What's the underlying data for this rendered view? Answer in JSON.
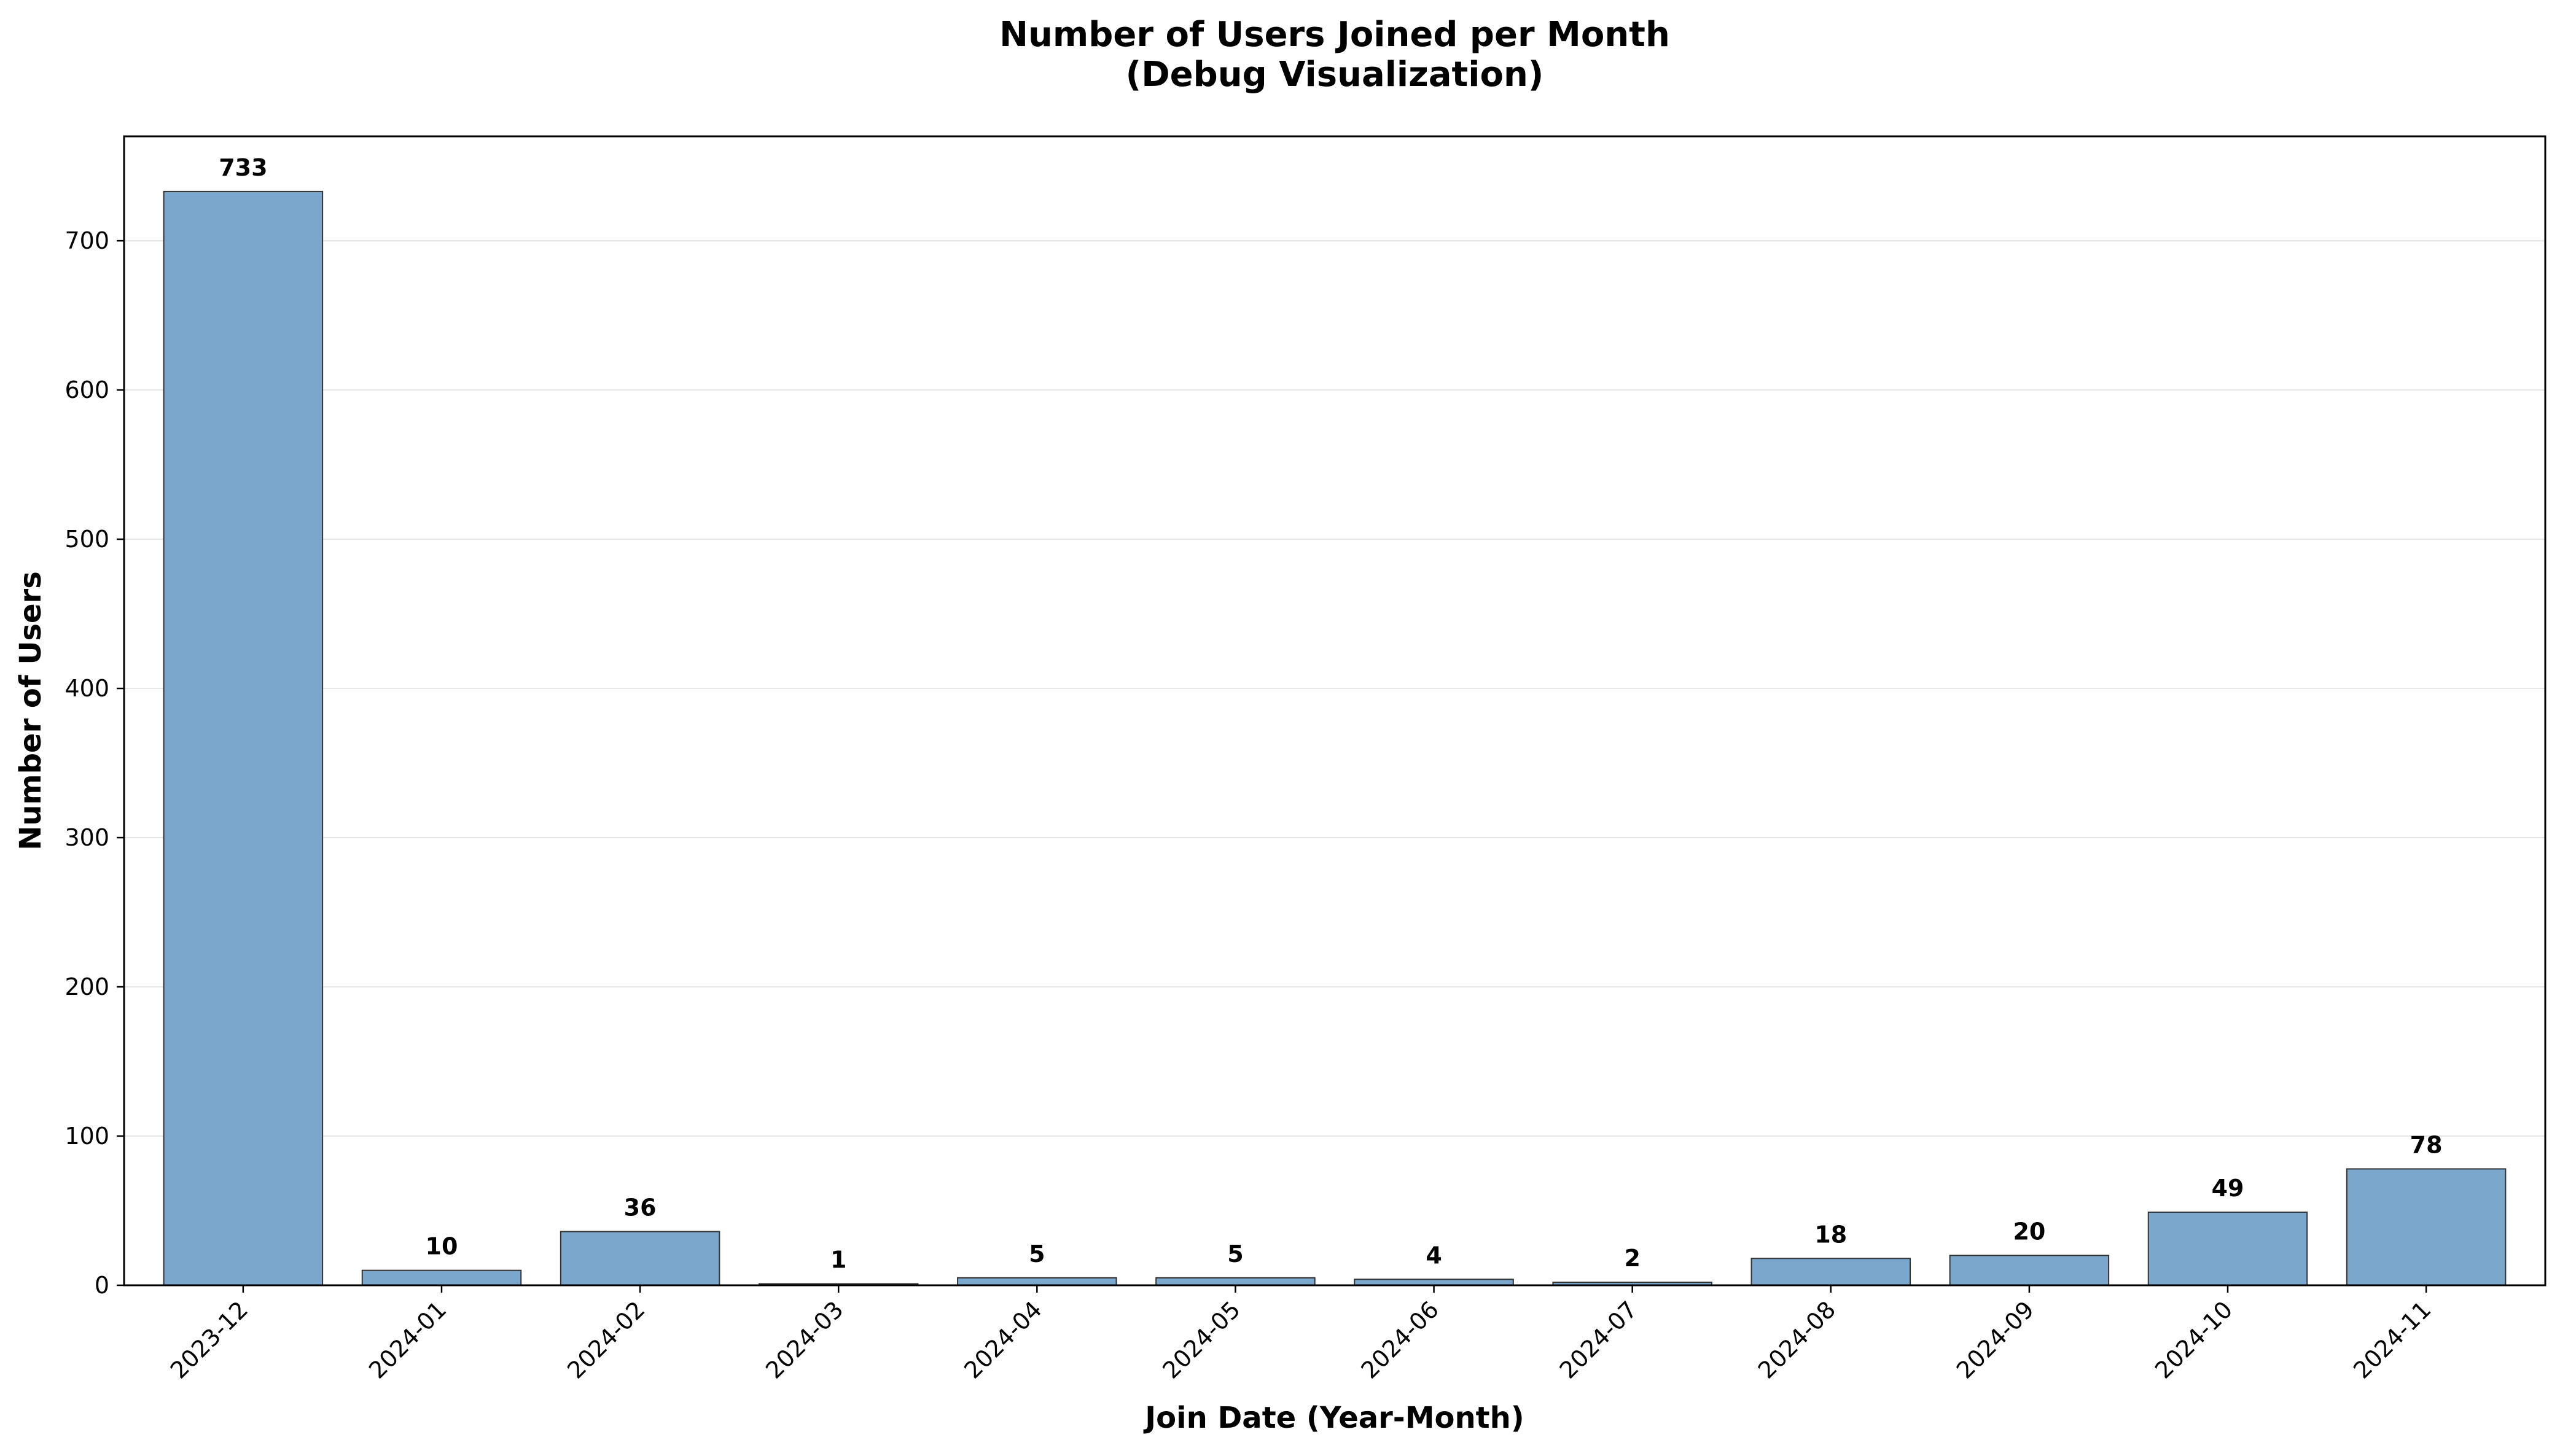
{
  "chart_data": {
    "type": "bar",
    "title": "Number of Users Joined per Month",
    "subtitle": "(Debug Visualization)",
    "xlabel": "Join Date (Year-Month)",
    "ylabel": "Number of Users",
    "categories": [
      "2023-12",
      "2024-01",
      "2024-02",
      "2024-03",
      "2024-04",
      "2024-05",
      "2024-06",
      "2024-07",
      "2024-08",
      "2024-09",
      "2024-10",
      "2024-11"
    ],
    "values": [
      733,
      10,
      36,
      1,
      5,
      5,
      4,
      2,
      18,
      20,
      49,
      78
    ],
    "ylim": [
      0,
      770
    ],
    "yticks": [
      0,
      100,
      200,
      300,
      400,
      500,
      600,
      700
    ],
    "grid": "y-major",
    "legend": "none",
    "bar_color": "#7ba7cc",
    "bar_edge_color": "#333333",
    "grid_color": "#e5e5e5"
  }
}
